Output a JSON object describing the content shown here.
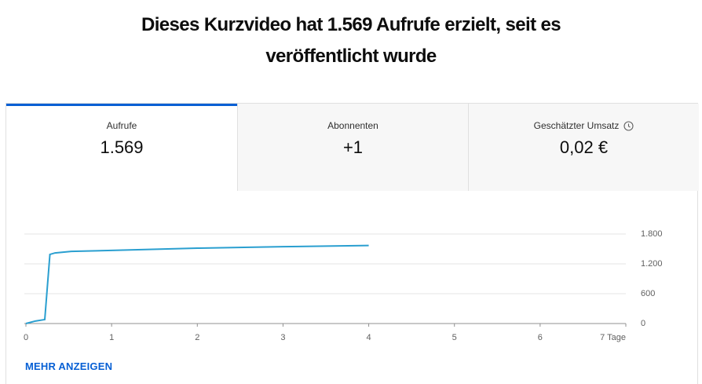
{
  "header": {
    "title": "Dieses Kurzvideo hat 1.569 Aufrufe erzielt, seit es veröffentlicht wurde"
  },
  "tabs": [
    {
      "label": "Aufrufe",
      "value": "1.569"
    },
    {
      "label": "Abonnenten",
      "value": "+1"
    },
    {
      "label": "Geschätzter Umsatz",
      "value": "0,02 €"
    }
  ],
  "chart_data": {
    "type": "line",
    "x": [
      0,
      0.11,
      0.22,
      0.28,
      0.34,
      0.53,
      1,
      2,
      3,
      4
    ],
    "series": [
      {
        "color": "#2a9fd0",
        "values": [
          0,
          50,
          80,
          1390,
          1420,
          1450,
          1470,
          1515,
          1545,
          1569
        ]
      }
    ],
    "xlim": [
      0,
      7
    ],
    "xticks": [
      0,
      1,
      2,
      3,
      4,
      5,
      6,
      {
        "value": 7,
        "label": "7 Tage"
      }
    ],
    "ylim": [
      0,
      1800
    ],
    "yticks": [
      0,
      600,
      {
        "value": 1200,
        "label": "1.200"
      },
      {
        "value": 1800,
        "label": "1.800"
      }
    ],
    "grid": true
  },
  "link": "MEHR ANZEIGEN"
}
